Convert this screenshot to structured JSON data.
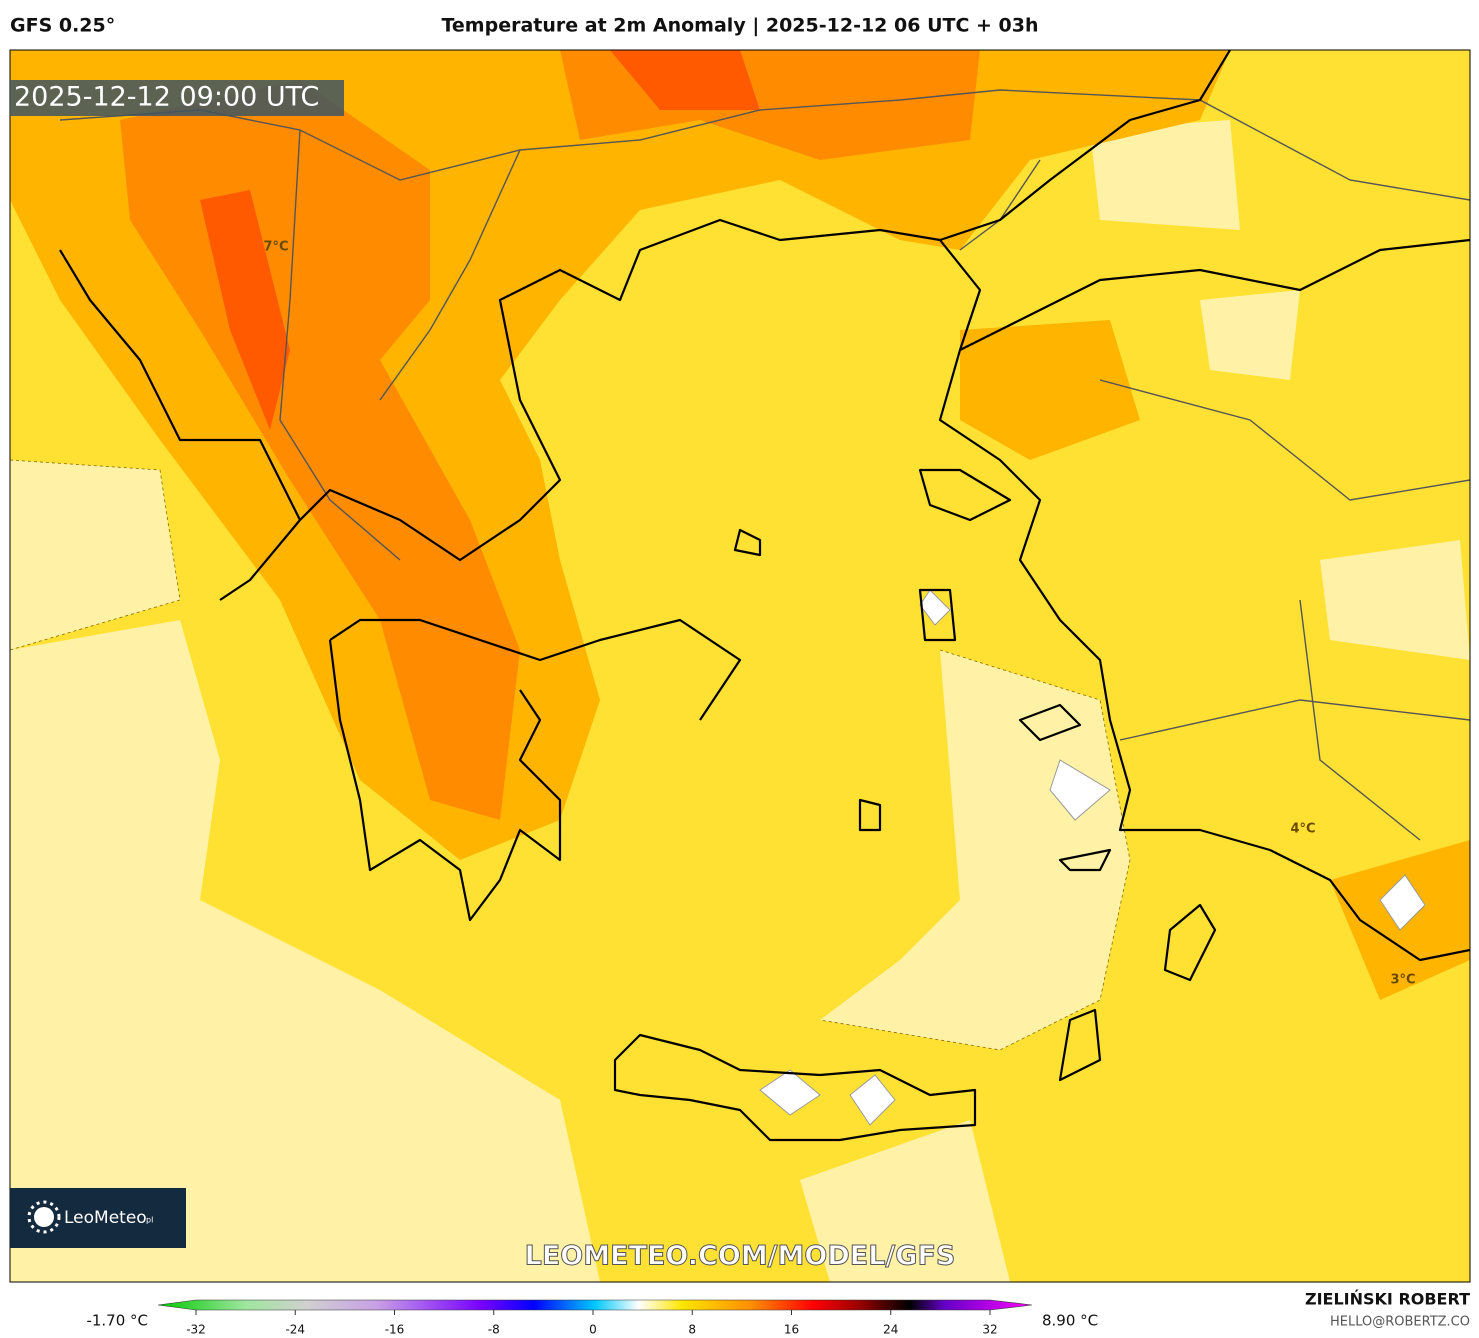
{
  "header": {
    "model": "GFS 0.25°",
    "title": "Temperature at 2m Anomaly | 2025-12-12 06 UTC + 03h"
  },
  "map": {
    "timestamp": "2025-12-12 09:00 UTC",
    "labels": [
      {
        "text": "7°C"
      },
      {
        "text": "4°C"
      },
      {
        "text": "3°C"
      }
    ],
    "logo": "LeoMeteo",
    "logo_suffix": "pl",
    "watermark": "LEOMETEO.COM/MODEL/GFS"
  },
  "colorbar": {
    "min_label": "-1.70 °C",
    "max_label": "8.90 °C",
    "lim": [
      -32,
      32
    ],
    "ticks": [
      -32,
      -24,
      -16,
      -8,
      0,
      8,
      16,
      24,
      32
    ]
  },
  "credit": {
    "author": "ZIELIŃSKI ROBERT",
    "email": "HELLO@ROBERTZ.CO"
  }
}
